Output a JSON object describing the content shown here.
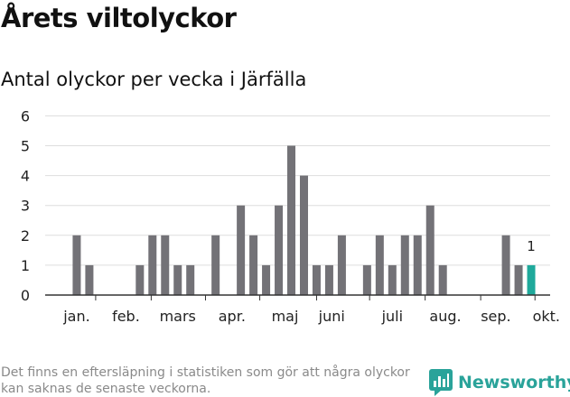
{
  "title": "Årets viltolyckor",
  "subtitle": "Antal olyckor per vecka i Järfälla",
  "footnote": "Det finns en eftersläpning i statistiken som gör att några olyckor kan saknas de senaste veckorna.",
  "brand": "Newsworthy",
  "colors": {
    "bar": "#737277",
    "highlight": "#1fa99b",
    "grid": "#dddddd",
    "brand": "#2aa39a"
  },
  "chart_data": {
    "type": "bar",
    "title": "Antal olyckor per vecka i Järfälla",
    "ylim": [
      0,
      6
    ],
    "yticks": [
      0,
      1,
      2,
      3,
      4,
      5,
      6
    ],
    "weeks": [
      1,
      2,
      3,
      4,
      5,
      6,
      7,
      8,
      9,
      10,
      11,
      12,
      13,
      14,
      15,
      16,
      17,
      18,
      19,
      20,
      21,
      22,
      23,
      24,
      25,
      26,
      27,
      28,
      29,
      30,
      31,
      32,
      33,
      34,
      35,
      36,
      37,
      38,
      39,
      40
    ],
    "values": [
      0,
      0,
      2,
      1,
      0,
      0,
      0,
      1,
      2,
      2,
      1,
      1,
      0,
      2,
      0,
      3,
      2,
      1,
      3,
      5,
      4,
      1,
      1,
      2,
      0,
      1,
      2,
      1,
      2,
      2,
      3,
      1,
      0,
      0,
      0,
      0,
      2,
      1,
      1,
      0
    ],
    "highlight_week": 39,
    "highlight_label": "1",
    "month_labels": [
      "jan.",
      "feb.",
      "mars",
      "apr.",
      "maj",
      "juni",
      "juli",
      "aug.",
      "sep.",
      "okt."
    ],
    "month_label_weeks": [
      3.0,
      6.9,
      11.0,
      15.3,
      19.5,
      23.2,
      28.0,
      32.2,
      36.2,
      40.2
    ],
    "month_tick_weeks": [
      4.5,
      8.9,
      13.2,
      17.5,
      22.0,
      26.2,
      30.6,
      35.0,
      39.3
    ]
  }
}
